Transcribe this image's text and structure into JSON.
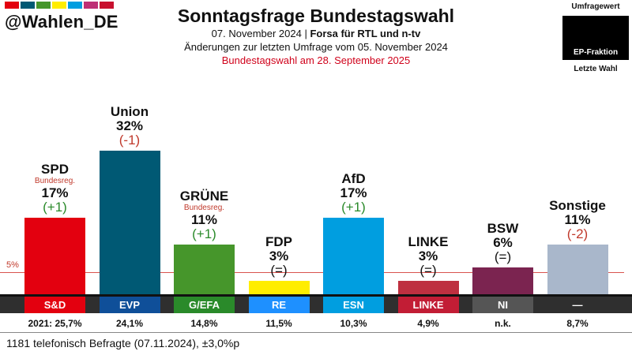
{
  "brand": {
    "handle": "@Wahlen_DE",
    "stripe_colors": [
      "#e3000f",
      "#005974",
      "#46962b",
      "#ffed00",
      "#009ee0",
      "#be3075",
      "#c8102e"
    ]
  },
  "header": {
    "title": "Sonntagsfrage Bundestagswahl",
    "date_source_pre": "07. November 2024 | ",
    "date_source_bold": "Forsa für RTL und n-tv",
    "changes_note": "Änderungen zur letzten Umfrage vom 05. November 2024",
    "election_note": "Bundestagswahl am 28. September 2025",
    "election_color": "#d0021b"
  },
  "legend": {
    "top_label": "Umfragewert",
    "box_label": "EP-Fraktion",
    "bottom_label": "Letzte Wahl"
  },
  "threshold_label": "5%",
  "footer": "1181 telefonisch Befragte (07.11.2024), ±3,0%p",
  "chart_data": {
    "type": "bar",
    "title": "Sonntagsfrage Bundestagswahl",
    "ylim": [
      0,
      33
    ],
    "threshold": 5,
    "categories": [
      "SPD",
      "Union",
      "GRÜNE",
      "FDP",
      "AfD",
      "LINKE",
      "BSW",
      "Sonstige"
    ],
    "values": [
      17,
      32,
      11,
      3,
      17,
      3,
      6,
      11
    ],
    "value_labels": [
      "17%",
      "32%",
      "11%",
      "3%",
      "17%",
      "3%",
      "6%",
      "11%"
    ],
    "changes": [
      "(+1)",
      "(-1)",
      "(+1)",
      "(=)",
      "(+1)",
      "(=)",
      "(=)",
      "(-2)"
    ],
    "change_colors": [
      "#2a8a2a",
      "#c0392b",
      "#2a8a2a",
      "#111111",
      "#2a8a2a",
      "#111111",
      "#111111",
      "#c0392b"
    ],
    "notes": [
      "Bundesreg.",
      "",
      "Bundesreg.",
      "",
      "",
      "",
      "",
      ""
    ],
    "colors": [
      "#e3000f",
      "#005974",
      "#46962b",
      "#ffed00",
      "#009ee0",
      "#be3040",
      "#7b2450",
      "#a9b7cb"
    ],
    "ep_fractions": [
      "S&D",
      "EVP",
      "G/EFA",
      "RE",
      "ESN",
      "LINKE",
      "NI",
      "—"
    ],
    "ep_colors": [
      "#e3000f",
      "#0f4f99",
      "#2a8a2a",
      "#1e90ff",
      "#009ee0",
      "#c21d35",
      "#555555",
      "#2f2f2f"
    ],
    "last_election": [
      "2021: 25,7%",
      "24,1%",
      "14,8%",
      "11,5%",
      "10,3%",
      "4,9%",
      "n.k.",
      "8,7%"
    ]
  }
}
